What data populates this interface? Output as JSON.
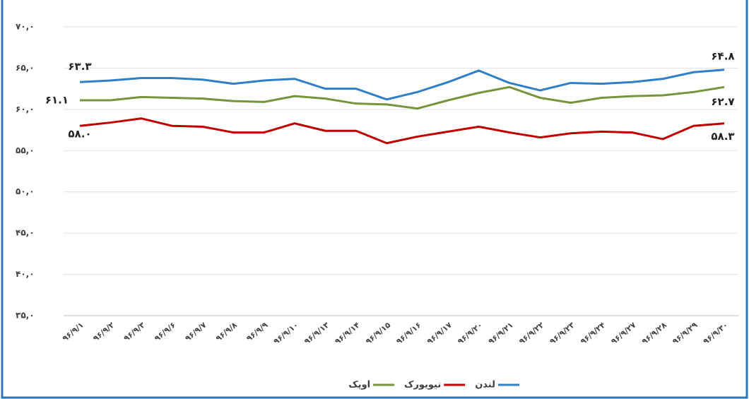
{
  "chart_data": {
    "type": "line",
    "categories": [
      "۹۶/۹/۱",
      "۹۶/۹/۲",
      "۹۶/۹/۳",
      "۹۶/۹/۶",
      "۹۶/۹/۷",
      "۹۶/۹/۸",
      "۹۶/۹/۹",
      "۹۶/۹/۱۰",
      "۹۶/۹/۱۳",
      "۹۶/۹/۱۴",
      "۹۶/۹/۱۵",
      "۹۶/۹/۱۶",
      "۹۶/۹/۱۷",
      "۹۶/۹/۲۰",
      "۹۶/۹/۲۱",
      "۹۶/۹/۲۲",
      "۹۶/۹/۲۳",
      "۹۶/۹/۲۴",
      "۹۶/۹/۲۷",
      "۹۶/۹/۲۸",
      "۹۶/۹/۲۹",
      "۹۶/۹/۳۰"
    ],
    "series": [
      {
        "name": "لندن",
        "color": "#2e7fc7",
        "values": [
          63.3,
          63.5,
          63.8,
          63.8,
          63.6,
          63.1,
          63.5,
          63.7,
          62.5,
          62.5,
          61.2,
          62.1,
          63.3,
          64.7,
          63.2,
          62.3,
          63.2,
          63.1,
          63.3,
          63.7,
          64.5,
          64.8
        ],
        "value_labels": [
          "۶۳.۳",
          null,
          null,
          null,
          null,
          null,
          null,
          null,
          null,
          null,
          null,
          null,
          null,
          null,
          null,
          null,
          null,
          null,
          null,
          null,
          null,
          "۶۴.۸"
        ]
      },
      {
        "name": "نیویورک",
        "color": "#c00000",
        "values": [
          58.0,
          58.4,
          58.9,
          58.0,
          57.9,
          57.2,
          57.2,
          58.3,
          57.4,
          57.4,
          55.9,
          56.7,
          57.3,
          57.9,
          57.2,
          56.6,
          57.1,
          57.3,
          57.2,
          56.4,
          58.0,
          58.3
        ],
        "value_labels": [
          "۵۸.۰",
          null,
          null,
          null,
          null,
          null,
          null,
          null,
          null,
          null,
          null,
          null,
          null,
          null,
          null,
          null,
          null,
          null,
          null,
          null,
          null,
          "۵۸.۳"
        ]
      },
      {
        "name": "اوپک",
        "color": "#77933c",
        "values": [
          61.1,
          61.1,
          61.5,
          61.4,
          61.3,
          61.0,
          60.9,
          61.6,
          61.3,
          60.7,
          60.6,
          60.1,
          61.1,
          62.0,
          62.7,
          61.4,
          60.8,
          61.4,
          61.6,
          61.7,
          62.1,
          62.7
        ],
        "value_labels": [
          "۶۱.۱",
          null,
          null,
          null,
          null,
          null,
          null,
          null,
          null,
          null,
          null,
          null,
          null,
          null,
          null,
          null,
          null,
          null,
          null,
          null,
          null,
          "۶۲.۷"
        ]
      }
    ],
    "ylim": [
      35,
      70
    ],
    "yticks": [
      {
        "value": 35,
        "label": "۳۵,۰"
      },
      {
        "value": 40,
        "label": "۴۰,۰"
      },
      {
        "value": 45,
        "label": "۴۵,۰"
      },
      {
        "value": 50,
        "label": "۵۰,۰"
      },
      {
        "value": 55,
        "label": "۵۵,۰"
      },
      {
        "value": 60,
        "label": "۶۰,۰"
      },
      {
        "value": 65,
        "label": "۶۵,۰"
      },
      {
        "value": 70,
        "label": "۷۰,۰"
      }
    ],
    "grid": true,
    "legend": "bottom"
  }
}
